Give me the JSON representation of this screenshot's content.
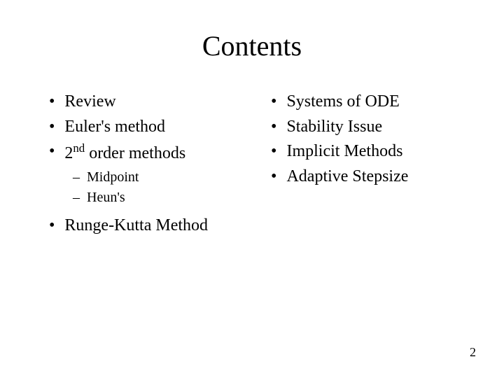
{
  "slide": {
    "title": "Contents",
    "left_column": {
      "bullets": [
        {
          "text": "Review"
        },
        {
          "text": "Euler's method"
        },
        {
          "text_html": "2<sup>nd</sup> order methods"
        }
      ],
      "sub_bullets": [
        {
          "text": "Midpoint"
        },
        {
          "text": "Heun's"
        }
      ],
      "final_bullet": {
        "text": "Runge-Kutta Method"
      }
    },
    "right_column": {
      "bullets": [
        {
          "text": "Systems of ODE"
        },
        {
          "text": "Stability Issue"
        },
        {
          "text": "Implicit Methods"
        },
        {
          "text": "Adaptive Stepsize"
        }
      ]
    },
    "page_number": "2",
    "styling": {
      "background_color": "#ffffff",
      "text_color": "#000000",
      "title_fontsize": 40,
      "bullet_fontsize": 24,
      "sub_bullet_fontsize": 20,
      "page_number_fontsize": 18,
      "font_family": "Times New Roman"
    }
  }
}
